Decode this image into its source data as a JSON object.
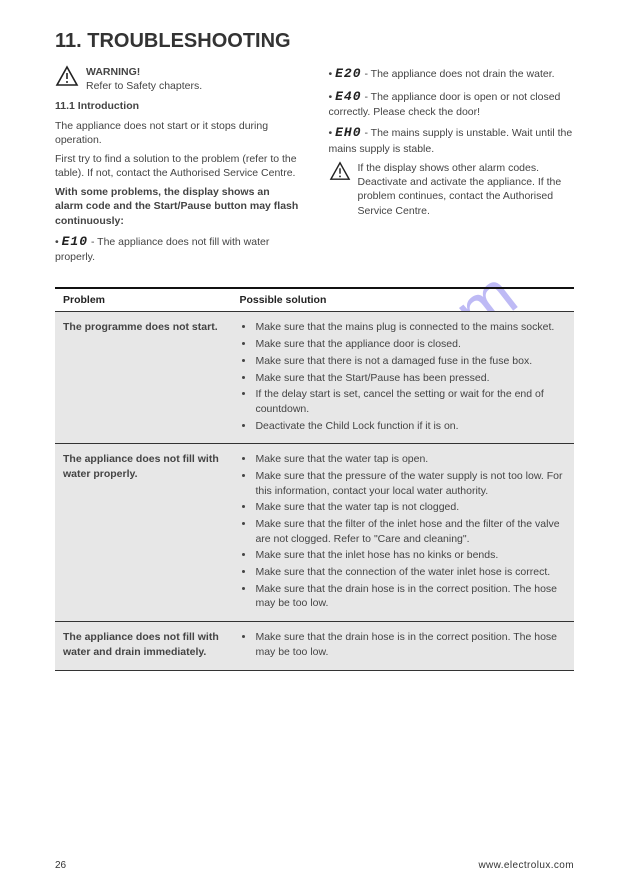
{
  "watermark": "manualshive.com",
  "page_number": "26",
  "brand_footer": "www.electrolux.com",
  "title": "11. TROUBLESHOOTING",
  "left_col": {
    "warning_label": "WARNING!",
    "warning_text": "Refer to Safety chapters.",
    "section_num": "11.1",
    "section_title": "Introduction",
    "p1": "The appliance does not start or it stops during operation.",
    "p2": "First try to find a solution to the problem (refer to the table). If not, contact the Authorised Service Centre.",
    "p3_bold": "With some problems, the display shows an alarm code and the Start/Pause button may flash continuously:"
  },
  "right_col": {
    "row1_pre": "•",
    "row1_code": "E20",
    "row1_post": " - The appliance does not drain the water.",
    "row2_pre": "•",
    "row2_code": "E40",
    "row2_post": " - The appliance door is open or not closed correctly. Please check the door!",
    "row3_pre": "•",
    "row3_code": "EH0",
    "row3_post": " - The mains supply is unstable. Wait until the mains supply is stable.",
    "warn2": "If the display shows other alarm codes. Deactivate and activate the appliance. If the problem continues, contact the Authorised Service Centre."
  },
  "mid_bullet": {
    "pre": "•",
    "code": "E10",
    "post": " - The appliance does not fill with water properly."
  },
  "table": {
    "h1": "Problem",
    "h2": "Possible solution",
    "rows": [
      {
        "problem_bold": "The programme does not start.",
        "solutions": [
          "Make sure that the mains plug is connected to the mains socket.",
          "Make sure that the appliance door is closed.",
          "Make sure that there is not a damaged fuse in the fuse box.",
          "Make sure that the Start/Pause has been pressed.",
          "If the delay start is set, cancel the setting or wait for the end of countdown.",
          "Deactivate the Child Lock function if it is on."
        ]
      },
      {
        "problem_bold": "The appliance does not fill with water properly.",
        "solutions": [
          "Make sure that the water tap is open.",
          "Make sure that the pressure of the water supply is not too low. For this information, contact your local water authority.",
          "Make sure that the water tap is not clogged.",
          "Make sure that the filter of the inlet hose and the filter of the valve are not clogged. Refer to \"Care and cleaning\".",
          "Make sure that the inlet hose has no kinks or bends.",
          "Make sure that the connection of the water inlet hose is correct.",
          "Make sure that the drain hose is in the correct position. The hose may be too low."
        ]
      },
      {
        "problem_bold": "The appliance does not fill with water and drain immediately.",
        "solutions": [
          "Make sure that the drain hose is in the correct position. The hose may be too low."
        ]
      }
    ]
  }
}
